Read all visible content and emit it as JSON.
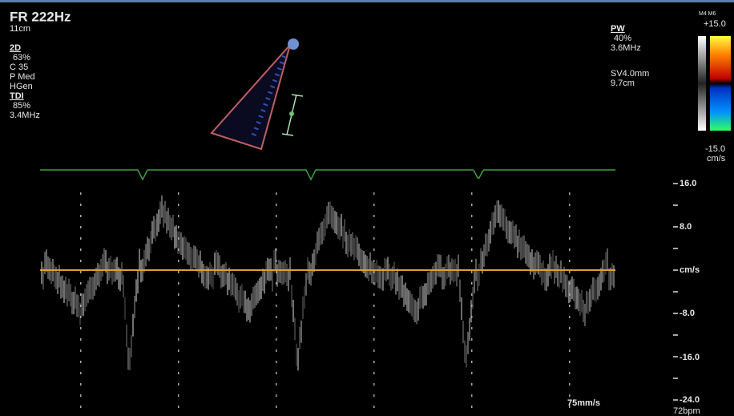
{
  "header": {
    "left": [
      "FR 222Hz",
      "11cm",
      "2D",
      "63%",
      "C 35",
      "P Med",
      "HGen",
      "TDI",
      "85%",
      "3.4MHz"
    ],
    "right": [
      "PW",
      "40%",
      "3.6MHz",
      "SV4.0mm",
      "9.7cm"
    ]
  },
  "colorbar": {
    "mode": "M4 M6",
    "top": "+15.0",
    "bottom": "-15.0",
    "unit": "cm/s"
  },
  "scale": [
    "16.0",
    "8.0",
    "cm/s",
    "-8.0",
    "-16.0",
    "-24.0"
  ],
  "footer": {
    "sweep": "75mm/s",
    "heart_rate": "72bpm"
  }
}
